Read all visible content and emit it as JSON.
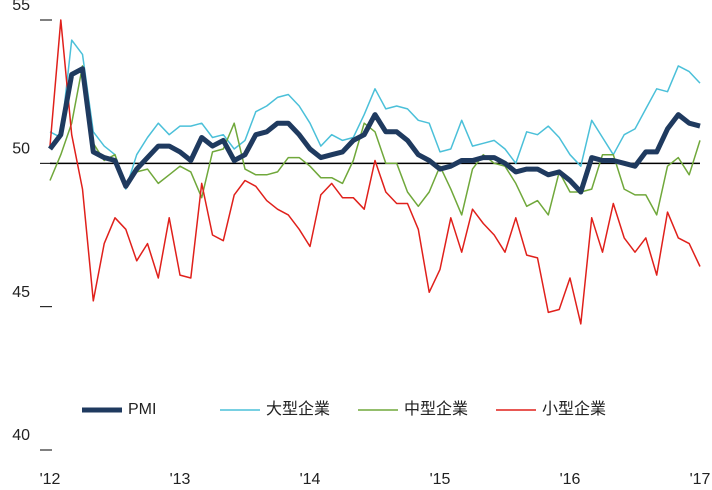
{
  "chart_data": {
    "type": "line",
    "categories": [
      "'12",
      null,
      null,
      null,
      null,
      null,
      null,
      null,
      null,
      null,
      null,
      null,
      "'13",
      null,
      null,
      null,
      null,
      null,
      null,
      null,
      null,
      null,
      null,
      null,
      "'14",
      null,
      null,
      null,
      null,
      null,
      null,
      null,
      null,
      null,
      null,
      null,
      "'15",
      null,
      null,
      null,
      null,
      null,
      null,
      null,
      null,
      null,
      null,
      null,
      "'16",
      null,
      null,
      null,
      null,
      null,
      null,
      null,
      null,
      null,
      null,
      null,
      "'17"
    ],
    "ylim": [
      40,
      55
    ],
    "yticks": [
      40,
      45,
      50,
      55
    ],
    "reference_line": 50,
    "legend": "inside-bottom",
    "series": [
      {
        "name": "PMI",
        "color": "#1f3a5f",
        "width": 5,
        "values": [
          50.5,
          51.0,
          53.1,
          53.3,
          50.4,
          50.2,
          50.1,
          49.2,
          49.8,
          50.2,
          50.6,
          50.6,
          50.4,
          50.1,
          50.9,
          50.6,
          50.8,
          50.1,
          50.3,
          51.0,
          51.1,
          51.4,
          51.4,
          51.0,
          50.5,
          50.2,
          50.3,
          50.4,
          50.8,
          51.0,
          51.7,
          51.1,
          51.1,
          50.8,
          50.3,
          50.1,
          49.8,
          49.9,
          50.1,
          50.1,
          50.2,
          50.2,
          50.0,
          49.7,
          49.8,
          49.8,
          49.6,
          49.7,
          49.4,
          49.0,
          50.2,
          50.1,
          50.1,
          50.0,
          49.9,
          50.4,
          50.4,
          51.2,
          51.7,
          51.4,
          51.3
        ]
      },
      {
        "name": "大型企業",
        "color": "#4bc0d9",
        "width": 1.5,
        "values": [
          51.1,
          50.9,
          54.3,
          53.8,
          51.1,
          50.6,
          50.3,
          49.1,
          50.3,
          50.9,
          51.4,
          51.0,
          51.3,
          51.3,
          51.4,
          50.9,
          51.0,
          50.5,
          50.8,
          51.8,
          52.0,
          52.3,
          52.4,
          52.0,
          51.4,
          50.6,
          51.0,
          50.8,
          50.9,
          51.7,
          52.6,
          51.9,
          52.0,
          51.9,
          51.5,
          51.4,
          50.4,
          50.5,
          51.5,
          50.6,
          50.7,
          50.8,
          50.5,
          50.0,
          51.1,
          51.0,
          51.3,
          50.9,
          50.3,
          49.9,
          51.5,
          50.9,
          50.3,
          51.0,
          51.2,
          51.9,
          52.6,
          52.5,
          53.4,
          53.2,
          52.8
        ]
      },
      {
        "name": "中型企業",
        "color": "#70a83b",
        "width": 1.5,
        "values": [
          49.4,
          50.3,
          51.4,
          53.4,
          50.7,
          50.1,
          50.3,
          49.2,
          49.7,
          49.8,
          49.3,
          49.6,
          49.9,
          49.7,
          48.8,
          50.4,
          50.5,
          51.4,
          49.8,
          49.6,
          49.6,
          49.7,
          50.2,
          50.2,
          49.9,
          49.5,
          49.5,
          49.3,
          50.1,
          51.4,
          51.1,
          50.0,
          50.0,
          49.0,
          48.5,
          49.0,
          49.9,
          49.1,
          48.2,
          49.8,
          50.3,
          50.0,
          49.9,
          49.3,
          48.5,
          48.7,
          48.2,
          49.7,
          49.0,
          49.0,
          49.1,
          50.3,
          50.3,
          49.1,
          48.9,
          48.9,
          48.2,
          49.9,
          50.2,
          49.6,
          50.8
        ]
      },
      {
        "name": "小型企業",
        "color": "#e0201b",
        "width": 1.5,
        "values": [
          50.6,
          55.0,
          51.0,
          49.1,
          45.2,
          47.2,
          48.1,
          47.7,
          46.6,
          47.2,
          46.0,
          48.1,
          46.1,
          46.0,
          49.3,
          47.5,
          47.3,
          48.9,
          49.4,
          49.2,
          48.7,
          48.4,
          48.2,
          47.7,
          47.1,
          48.9,
          49.3,
          48.8,
          48.8,
          48.4,
          50.1,
          49.0,
          48.6,
          48.6,
          47.7,
          45.5,
          46.3,
          48.1,
          46.9,
          48.4,
          47.9,
          47.5,
          46.9,
          48.1,
          46.8,
          46.7,
          44.8,
          44.9,
          46.0,
          44.4,
          48.1,
          46.9,
          48.6,
          47.4,
          46.9,
          47.4,
          46.1,
          48.3,
          47.4,
          47.2,
          46.4
        ]
      }
    ]
  }
}
